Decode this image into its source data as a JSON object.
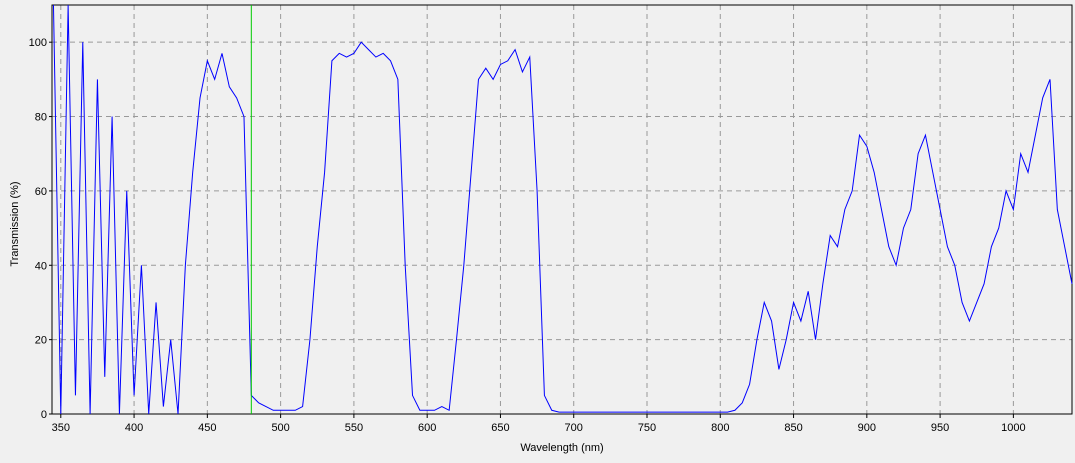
{
  "chart_data": {
    "type": "line",
    "xlabel": "Wavelength (nm)",
    "ylabel": "Transmission (%)",
    "x": [
      345,
      350,
      355,
      360,
      365,
      370,
      375,
      380,
      385,
      390,
      395,
      400,
      405,
      410,
      415,
      420,
      425,
      430,
      435,
      440,
      445,
      450,
      455,
      460,
      465,
      470,
      475,
      480,
      485,
      490,
      495,
      500,
      505,
      510,
      515,
      520,
      525,
      530,
      535,
      540,
      545,
      550,
      555,
      560,
      565,
      570,
      575,
      580,
      585,
      590,
      595,
      600,
      605,
      610,
      615,
      620,
      625,
      630,
      635,
      640,
      645,
      650,
      655,
      660,
      665,
      670,
      675,
      680,
      685,
      690,
      695,
      700,
      705,
      710,
      715,
      720,
      725,
      730,
      735,
      740,
      745,
      750,
      755,
      760,
      765,
      770,
      775,
      780,
      785,
      790,
      795,
      800,
      805,
      810,
      815,
      820,
      825,
      830,
      835,
      840,
      845,
      850,
      855,
      860,
      865,
      870,
      875,
      880,
      885,
      890,
      895,
      900,
      905,
      910,
      915,
      920,
      925,
      930,
      935,
      940,
      945,
      950,
      955,
      960,
      965,
      970,
      975,
      980,
      985,
      990,
      995,
      1000,
      1005,
      1010,
      1015,
      1020,
      1025,
      1030,
      1035,
      1040
    ],
    "series": [
      {
        "color": "#0000ff",
        "values": [
          110,
          0,
          110,
          5,
          100,
          0,
          90,
          10,
          80,
          0,
          60,
          5,
          40,
          0,
          30,
          2,
          20,
          0,
          40,
          65,
          85,
          95,
          90,
          97,
          88,
          85,
          80,
          5,
          3,
          2,
          1,
          1,
          1,
          1,
          2,
          20,
          45,
          65,
          95,
          97,
          96,
          97,
          100,
          98,
          96,
          97,
          95,
          90,
          40,
          5,
          1,
          1,
          1,
          2,
          1,
          20,
          40,
          65,
          90,
          93,
          90,
          94,
          95,
          98,
          92,
          96,
          60,
          5,
          1,
          0.5,
          0.5,
          0.5,
          0.5,
          0.5,
          0.5,
          0.5,
          0.5,
          0.5,
          0.5,
          0.5,
          0.5,
          0.5,
          0.5,
          0.5,
          0.5,
          0.5,
          0.5,
          0.5,
          0.5,
          0.5,
          0.5,
          0.5,
          0.5,
          1,
          3,
          8,
          20,
          30,
          25,
          12,
          20,
          30,
          25,
          33,
          20,
          35,
          48,
          45,
          55,
          60,
          75,
          72,
          65,
          55,
          45,
          40,
          50,
          55,
          70,
          75,
          65,
          55,
          45,
          40,
          30,
          25,
          30,
          35,
          45,
          50,
          60,
          55,
          70,
          65,
          75,
          85,
          90,
          55,
          45,
          35
        ]
      }
    ],
    "marker": {
      "x": 480,
      "color": "#00cc00"
    },
    "xlim": [
      344,
      1040
    ],
    "ylim": [
      0,
      110
    ],
    "xticks": [
      350,
      400,
      450,
      500,
      550,
      600,
      650,
      700,
      750,
      800,
      850,
      900,
      950,
      1000
    ],
    "yticks": [
      0,
      20,
      40,
      60,
      80,
      100
    ],
    "grid": true
  }
}
